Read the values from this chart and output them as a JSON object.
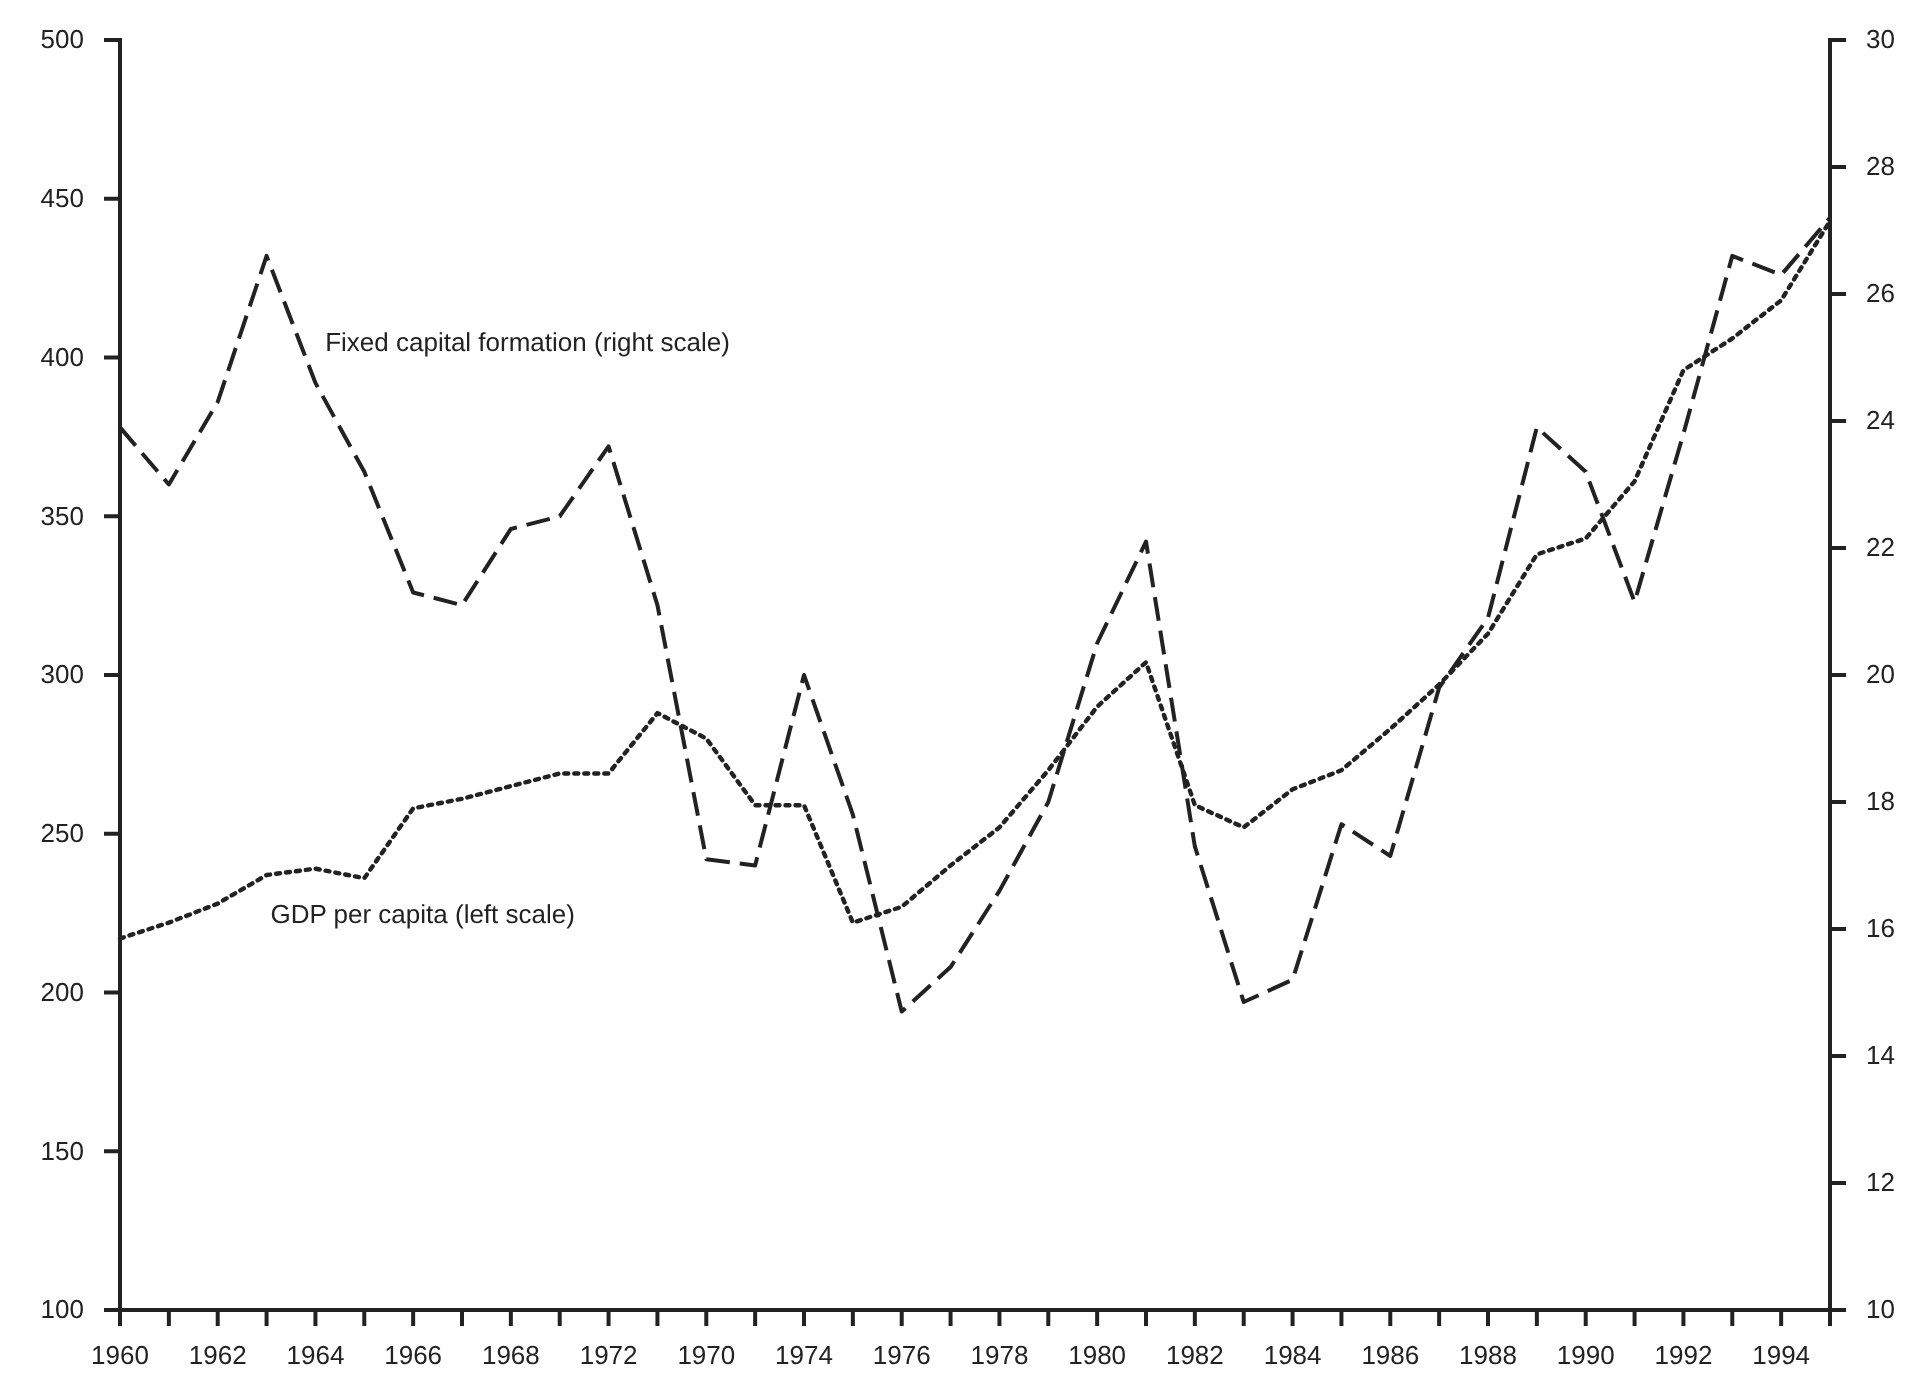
{
  "chart_data": {
    "type": "line",
    "categories": [
      "1960",
      null,
      "1962",
      null,
      "1964",
      null,
      "1966",
      null,
      "1968",
      null,
      "1972",
      null,
      "1970",
      null,
      "1974",
      null,
      "1976",
      null,
      "1978",
      null,
      "1980",
      null,
      "1982",
      null,
      "1984",
      null,
      "1986",
      null,
      "1988",
      null,
      "1990",
      null,
      "1992",
      null,
      "1994",
      null
    ],
    "series": [
      {
        "name": "Fixed capital formation (right scale)",
        "color": "#222222",
        "axis": "y2",
        "line_style": "dashed",
        "values": [
          23.9,
          23.0,
          24.3,
          26.6,
          24.6,
          23.2,
          21.3,
          21.1,
          22.3,
          22.5,
          23.6,
          21.1,
          17.1,
          17.0,
          20.0,
          17.8,
          14.7,
          15.4,
          16.6,
          18.0,
          20.5,
          22.1,
          17.3,
          14.85,
          15.2,
          17.65,
          17.15,
          19.8,
          20.9,
          23.9,
          23.2,
          21.15,
          23.8,
          26.6,
          26.3,
          27.2
        ]
      },
      {
        "name": "GDP per capita (left scale)",
        "color": "#222222",
        "line_style": "dotted",
        "values": [
          217,
          222,
          228,
          237,
          239,
          236,
          258,
          261,
          265,
          269,
          269,
          288,
          280,
          259,
          259,
          222,
          227,
          240,
          252,
          270,
          290,
          304,
          259,
          252,
          264,
          270,
          283,
          297,
          313,
          338,
          343,
          361,
          396,
          406,
          418,
          443
        ]
      }
    ],
    "ylim": [
      100,
      500
    ],
    "yticks": [
      100,
      150,
      200,
      250,
      300,
      350,
      400,
      450,
      500
    ],
    "y2lim": [
      10,
      30
    ],
    "y2ticks": [
      10,
      12,
      14,
      16,
      18,
      20,
      22,
      24,
      26,
      28,
      30
    ],
    "legend": false,
    "grid": false
  }
}
